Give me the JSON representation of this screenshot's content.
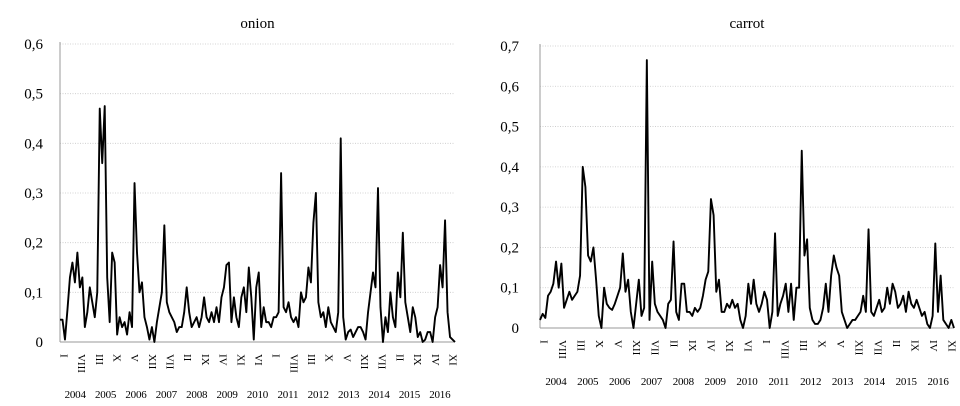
{
  "chart_data": [
    {
      "type": "line",
      "title": "onion",
      "xlabel": "",
      "ylabel": "",
      "ylim": [
        0,
        0.6
      ],
      "y_ticks": [
        "0",
        "0,1",
        "0,2",
        "0,3",
        "0,4",
        "0,5",
        "0,6"
      ],
      "grid": true,
      "x_tick_labels": [
        "I",
        "VIII",
        "III",
        "X",
        "V",
        "XII",
        "VII",
        "II",
        "IX",
        "IV",
        "XI",
        "VI",
        "I",
        "VIII",
        "III",
        "X",
        "V",
        "XII",
        "VII",
        "II",
        "IX",
        "IV",
        "XI"
      ],
      "year_labels": [
        "2004",
        "2005",
        "2006",
        "2007",
        "2008",
        "2009",
        "2010",
        "2011",
        "2012",
        "2013",
        "2014",
        "2015",
        "2016"
      ],
      "x_start": "2004-01",
      "x_step_months": 1,
      "series": [
        {
          "name": "",
          "values": [
            0.045,
            0.045,
            0.005,
            0.065,
            0.13,
            0.16,
            0.12,
            0.18,
            0.11,
            0.13,
            0.03,
            0.06,
            0.11,
            0.08,
            0.05,
            0.1,
            0.47,
            0.36,
            0.475,
            0.13,
            0.04,
            0.18,
            0.16,
            0.015,
            0.05,
            0.03,
            0.04,
            0.015,
            0.06,
            0.03,
            0.32,
            0.18,
            0.1,
            0.12,
            0.05,
            0.03,
            0.005,
            0.03,
            0.0,
            0.04,
            0.07,
            0.1,
            0.235,
            0.08,
            0.06,
            0.05,
            0.04,
            0.02,
            0.03,
            0.03,
            0.06,
            0.11,
            0.06,
            0.03,
            0.04,
            0.05,
            0.03,
            0.05,
            0.09,
            0.05,
            0.04,
            0.06,
            0.04,
            0.07,
            0.04,
            0.09,
            0.11,
            0.155,
            0.16,
            0.04,
            0.09,
            0.05,
            0.03,
            0.09,
            0.11,
            0.06,
            0.15,
            0.09,
            0.005,
            0.11,
            0.14,
            0.03,
            0.07,
            0.04,
            0.04,
            0.03,
            0.05,
            0.05,
            0.06,
            0.34,
            0.07,
            0.06,
            0.08,
            0.05,
            0.04,
            0.05,
            0.03,
            0.1,
            0.08,
            0.09,
            0.15,
            0.12,
            0.24,
            0.3,
            0.08,
            0.05,
            0.06,
            0.03,
            0.07,
            0.04,
            0.03,
            0.02,
            0.06,
            0.41,
            0.05,
            0.005,
            0.02,
            0.025,
            0.01,
            0.02,
            0.03,
            0.03,
            0.02,
            0.005,
            0.06,
            0.1,
            0.14,
            0.11,
            0.31,
            0.07,
            0.0,
            0.05,
            0.02,
            0.1,
            0.05,
            0.03,
            0.14,
            0.09,
            0.22,
            0.08,
            0.05,
            0.02,
            0.07,
            0.05,
            0.01,
            0.02,
            0.0,
            0.005,
            0.02,
            0.02,
            0.0,
            0.05,
            0.07,
            0.155,
            0.11,
            0.245,
            0.06,
            0.01,
            0.005,
            0.0
          ]
        }
      ]
    },
    {
      "type": "line",
      "title": "carrot",
      "xlabel": "",
      "ylabel": "",
      "ylim": [
        0,
        0.7
      ],
      "y_ticks": [
        "0",
        "0,1",
        "0,2",
        "0,3",
        "0,4",
        "0,5",
        "0,6",
        "0,7"
      ],
      "grid": true,
      "x_tick_labels": [
        "I",
        "VIII",
        "III",
        "X",
        "V",
        "XII",
        "VII",
        "II",
        "IX",
        "IV",
        "XI",
        "VI",
        "I",
        "VIII",
        "III",
        "X",
        "V",
        "XII",
        "VII",
        "II",
        "IX",
        "IV",
        "XI"
      ],
      "year_labels": [
        "2004",
        "2005",
        "2006",
        "2007",
        "2008",
        "2009",
        "2010",
        "2011",
        "2012",
        "2013",
        "2014",
        "2015",
        "2016"
      ],
      "x_start": "2004-01",
      "x_step_months": 1,
      "series": [
        {
          "name": "",
          "values": [
            0.02,
            0.035,
            0.025,
            0.08,
            0.09,
            0.11,
            0.165,
            0.1,
            0.16,
            0.05,
            0.07,
            0.09,
            0.07,
            0.08,
            0.09,
            0.13,
            0.4,
            0.35,
            0.18,
            0.165,
            0.2,
            0.12,
            0.03,
            0.0,
            0.1,
            0.06,
            0.05,
            0.045,
            0.06,
            0.08,
            0.1,
            0.185,
            0.09,
            0.12,
            0.04,
            0.0,
            0.06,
            0.12,
            0.03,
            0.05,
            0.665,
            0.02,
            0.165,
            0.06,
            0.04,
            0.03,
            0.02,
            0.0,
            0.06,
            0.07,
            0.215,
            0.04,
            0.02,
            0.11,
            0.11,
            0.04,
            0.04,
            0.03,
            0.05,
            0.04,
            0.05,
            0.08,
            0.12,
            0.14,
            0.32,
            0.28,
            0.09,
            0.12,
            0.04,
            0.04,
            0.06,
            0.05,
            0.07,
            0.05,
            0.06,
            0.02,
            0.0,
            0.03,
            0.11,
            0.06,
            0.12,
            0.06,
            0.04,
            0.06,
            0.09,
            0.07,
            0.0,
            0.04,
            0.235,
            0.03,
            0.06,
            0.08,
            0.11,
            0.04,
            0.11,
            0.02,
            0.1,
            0.1,
            0.44,
            0.18,
            0.22,
            0.05,
            0.02,
            0.01,
            0.01,
            0.02,
            0.05,
            0.11,
            0.04,
            0.13,
            0.18,
            0.15,
            0.13,
            0.04,
            0.02,
            0.0,
            0.01,
            0.02,
            0.02,
            0.03,
            0.04,
            0.08,
            0.04,
            0.245,
            0.04,
            0.03,
            0.05,
            0.07,
            0.04,
            0.05,
            0.1,
            0.06,
            0.11,
            0.09,
            0.05,
            0.06,
            0.08,
            0.04,
            0.09,
            0.06,
            0.05,
            0.07,
            0.05,
            0.03,
            0.04,
            0.01,
            0.0,
            0.03,
            0.21,
            0.04,
            0.13,
            0.02,
            0.01,
            0.0,
            0.02,
            0.0
          ]
        }
      ]
    }
  ]
}
